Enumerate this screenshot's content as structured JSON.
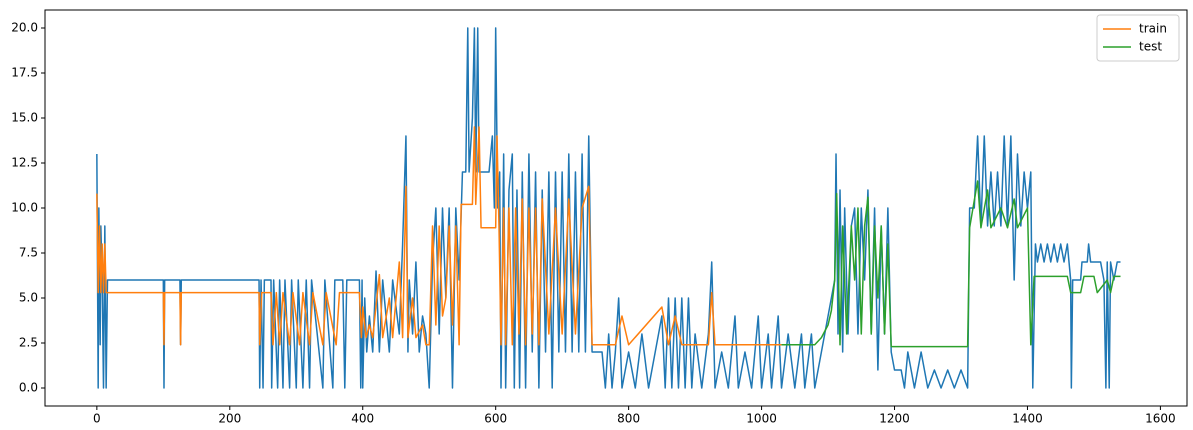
{
  "chart_data": {
    "type": "line",
    "xlim": [
      -78,
      1640
    ],
    "ylim": [
      -1,
      21
    ],
    "xticks": [
      0,
      200,
      400,
      600,
      800,
      1000,
      1200,
      1400,
      1600
    ],
    "yticks": [
      {
        "value": 0,
        "label": "0.0"
      },
      {
        "value": 2.5,
        "label": "2.5"
      },
      {
        "value": 5,
        "label": "5.0"
      },
      {
        "value": 7.5,
        "label": "7.5"
      },
      {
        "value": 10,
        "label": "10.0"
      },
      {
        "value": 12.5,
        "label": "12.5"
      },
      {
        "value": 15,
        "label": "15.0"
      },
      {
        "value": 17.5,
        "label": "17.5"
      },
      {
        "value": 20,
        "label": "20.0"
      }
    ],
    "legend": "upper right",
    "series": [
      {
        "color": "#1f77b4",
        "x": [
          0,
          2,
          3,
          5,
          6,
          8,
          10,
          12,
          14,
          16,
          100,
          101,
          102,
          125,
          126,
          127,
          244,
          245,
          247,
          250,
          252,
          262,
          263,
          266,
          272,
          275,
          280,
          283,
          290,
          293,
          300,
          303,
          310,
          315,
          320,
          323,
          340,
          343,
          355,
          358,
          370,
          373,
          376,
          395,
          397,
          399,
          400,
          403,
          406,
          410,
          415,
          420,
          425,
          430,
          440,
          445,
          455,
          460,
          465,
          468,
          470,
          475,
          480,
          485,
          490,
          495,
          500,
          505,
          510,
          515,
          520,
          525,
          530,
          535,
          540,
          545,
          550,
          555,
          558,
          560,
          565,
          568,
          570,
          573,
          575,
          590,
          595,
          598,
          600,
          603,
          606,
          608,
          612,
          615,
          620,
          625,
          628,
          632,
          636,
          640,
          645,
          650,
          655,
          660,
          665,
          670,
          675,
          680,
          685,
          690,
          695,
          700,
          705,
          710,
          715,
          720,
          725,
          730,
          735,
          740,
          745,
          760,
          765,
          770,
          775,
          780,
          785,
          790,
          800,
          810,
          820,
          830,
          840,
          850,
          855,
          860,
          865,
          870,
          875,
          880,
          885,
          890,
          895,
          900,
          910,
          920,
          925,
          930,
          940,
          950,
          960,
          965,
          975,
          985,
          995,
          1000,
          1010,
          1015,
          1025,
          1030,
          1040,
          1050,
          1060,
          1065,
          1075,
          1080,
          1090,
          1095,
          1100,
          1105,
          1110,
          1112,
          1115,
          1118,
          1122,
          1125,
          1130,
          1135,
          1140,
          1145,
          1150,
          1155,
          1160,
          1165,
          1170,
          1175,
          1180,
          1185,
          1190,
          1195,
          1200,
          1210,
          1215,
          1220,
          1230,
          1240,
          1250,
          1260,
          1270,
          1280,
          1290,
          1300,
          1310,
          1313,
          1320,
          1325,
          1330,
          1335,
          1340,
          1345,
          1350,
          1355,
          1360,
          1365,
          1370,
          1375,
          1380,
          1385,
          1390,
          1395,
          1400,
          1405,
          1408,
          1412,
          1415,
          1420,
          1425,
          1430,
          1435,
          1440,
          1445,
          1450,
          1455,
          1460,
          1465,
          1466,
          1468,
          1480,
          1482,
          1490,
          1492,
          1495,
          1510,
          1515,
          1518,
          1520,
          1523,
          1525,
          1530,
          1535,
          1540
        ],
        "values": [
          13,
          0,
          10,
          2.4,
          9,
          6,
          0,
          9,
          0,
          6,
          6,
          0,
          6,
          6,
          2.4,
          6,
          6,
          0,
          6,
          0,
          6,
          6,
          0,
          6,
          0,
          6,
          0,
          6,
          0,
          6,
          0,
          6,
          0,
          6,
          0,
          6,
          0,
          6,
          0,
          6,
          6,
          0,
          6,
          6,
          0,
          6,
          0,
          5,
          2,
          4,
          2,
          6.5,
          2,
          6,
          2,
          6,
          3,
          8,
          14,
          2,
          6,
          3,
          7,
          2,
          4,
          3,
          0,
          7,
          10,
          3,
          10,
          5,
          10,
          0,
          10,
          6,
          12,
          12,
          20,
          12,
          15,
          20,
          12,
          20,
          12,
          12,
          14,
          10,
          20,
          10,
          12,
          0,
          13,
          0,
          11,
          13,
          0,
          11,
          0,
          12,
          0,
          13,
          2,
          12,
          0,
          11,
          2,
          12,
          0,
          12,
          2,
          12,
          2,
          13,
          2,
          12,
          2,
          13,
          2,
          14,
          2,
          2,
          0,
          3,
          0,
          2,
          5,
          0,
          2,
          0,
          3,
          0,
          2,
          4,
          0,
          5,
          0,
          5,
          0,
          5,
          0,
          5,
          0,
          3,
          0,
          3,
          7,
          0,
          2,
          0,
          4,
          0,
          2,
          0,
          4,
          0,
          3,
          0,
          4,
          0,
          3,
          0,
          3,
          0,
          3,
          0,
          2,
          3,
          4,
          5,
          6,
          13,
          3,
          11,
          2,
          10,
          3,
          9,
          10,
          3,
          10,
          6,
          11,
          3,
          10,
          1,
          9,
          3,
          10,
          2,
          1,
          1,
          0,
          2,
          0,
          2,
          0,
          1,
          0,
          1,
          0,
          1,
          0,
          10,
          10,
          14,
          9,
          14,
          9,
          12,
          9,
          12,
          9,
          14,
          9,
          14,
          6,
          13,
          9,
          12,
          10,
          12,
          0,
          8,
          7,
          8,
          7,
          8,
          7,
          8,
          7,
          8,
          7,
          8,
          6,
          0,
          6,
          6,
          7,
          7,
          8,
          7,
          7,
          6,
          0,
          7,
          0,
          7,
          6,
          7,
          7
        ]
      },
      {
        "name": "train",
        "color": "#ff7f0e",
        "x": [
          0,
          2,
          4,
          6,
          8,
          10,
          12,
          14,
          100,
          101,
          102,
          125,
          126,
          127,
          244,
          245,
          248,
          262,
          265,
          270,
          275,
          280,
          290,
          295,
          305,
          310,
          320,
          325,
          340,
          345,
          360,
          365,
          395,
          398,
          400,
          405,
          410,
          415,
          425,
          430,
          440,
          445,
          455,
          460,
          465,
          468,
          475,
          480,
          490,
          495,
          500,
          505,
          510,
          515,
          520,
          525,
          530,
          535,
          540,
          545,
          548,
          565,
          568,
          570,
          575,
          578,
          600,
          602,
          605,
          608,
          612,
          615,
          620,
          625,
          630,
          635,
          640,
          645,
          650,
          655,
          660,
          665,
          670,
          680,
          690,
          700,
          710,
          720,
          730,
          740,
          745,
          760,
          780,
          790,
          800,
          850,
          860,
          870,
          880,
          920,
          925,
          930,
          1030
        ],
        "values": [
          10.8,
          5.3,
          9,
          5.3,
          8,
          5.3,
          8,
          5.3,
          5.3,
          2.4,
          5.3,
          5.3,
          2.4,
          5.3,
          5.3,
          2.4,
          5.3,
          5.3,
          2.4,
          5.3,
          2.4,
          5.3,
          2.4,
          5.3,
          2.4,
          5.3,
          2.4,
          5.3,
          2.4,
          5.3,
          2.4,
          5.3,
          5.3,
          2.8,
          4.5,
          2.8,
          3.5,
          2.8,
          6.3,
          2.8,
          5,
          2.8,
          7,
          2.8,
          11.2,
          2.8,
          5,
          2.8,
          3.5,
          2.4,
          2.4,
          9,
          3.5,
          9,
          4,
          5,
          9,
          3.5,
          9,
          2.4,
          10.2,
          10.2,
          14.5,
          10.2,
          14.5,
          8.9,
          8.9,
          14,
          8.9,
          2.4,
          10,
          2.4,
          10,
          2.4,
          10,
          3,
          10.5,
          2.4,
          10,
          3,
          10,
          2.4,
          10.5,
          3,
          10,
          3,
          10.5,
          3,
          10,
          11.2,
          2.4,
          2.4,
          2.4,
          4,
          2.4,
          4.5,
          2.4,
          4,
          2.4,
          2.4,
          5.3,
          2.4,
          2.4
        ]
      },
      {
        "name": "test",
        "color": "#2ca02c",
        "x": [
          1030,
          1080,
          1090,
          1100,
          1105,
          1110,
          1113,
          1118,
          1122,
          1128,
          1135,
          1140,
          1145,
          1150,
          1155,
          1160,
          1165,
          1170,
          1175,
          1180,
          1185,
          1190,
          1195,
          1310,
          1313,
          1325,
          1330,
          1340,
          1345,
          1360,
          1370,
          1380,
          1385,
          1400,
          1405,
          1410,
          1460,
          1465,
          1480,
          1485,
          1500,
          1505,
          1520,
          1525,
          1530,
          1540
        ],
        "values": [
          2.4,
          2.4,
          2.8,
          3.5,
          4.3,
          6,
          10.8,
          2.4,
          9,
          3,
          9,
          6,
          10,
          3,
          9,
          10.6,
          3,
          9,
          5,
          9,
          3,
          8,
          2.3,
          2.3,
          8.9,
          11.5,
          8.9,
          11,
          8.9,
          10,
          8.9,
          10.5,
          8.9,
          10,
          2.4,
          6.2,
          6.2,
          5.3,
          5.3,
          6.2,
          6.2,
          5.3,
          6,
          5.3,
          6.2,
          6.2
        ]
      }
    ]
  }
}
